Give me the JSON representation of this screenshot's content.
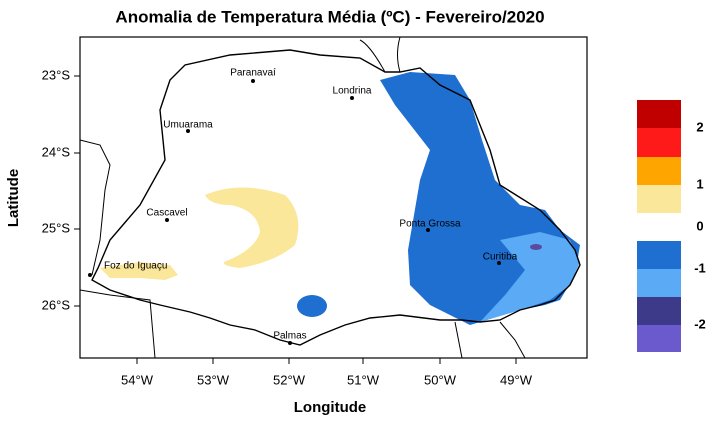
{
  "title": "Anomalia de Temperatura Média (ºC) - Fevereiro/2020",
  "x_axis": {
    "label": "Longitude",
    "ticks": [
      "54°W",
      "53°W",
      "52°W",
      "51°W",
      "50°W",
      "49°W"
    ]
  },
  "y_axis": {
    "label": "Latitude",
    "ticks": [
      "23°S",
      "24°S",
      "25°S",
      "26°S"
    ]
  },
  "cities": [
    "Paranavaí",
    "Londrina",
    "Umuarama",
    "Cascavel",
    "Ponta Grossa",
    "Curitiba",
    "Foz do Iguaçu",
    "Palmas"
  ],
  "legend": {
    "labels": [
      "2",
      "1",
      "0",
      "-1",
      "-2"
    ]
  }
}
